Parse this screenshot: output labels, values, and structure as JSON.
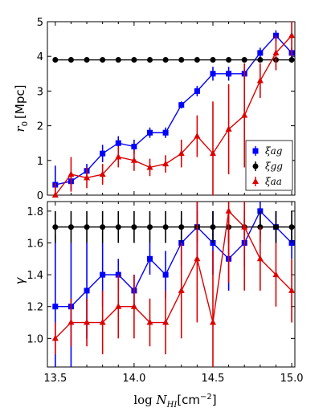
{
  "chart_data": [
    {
      "type": "line",
      "panel": "top",
      "ylabel": "r_0 [Mpc]",
      "ylabel_parts": {
        "symbol": "r",
        "subscript": "0",
        "unit": "[Mpc]"
      },
      "xlim": [
        13.45,
        15.02
      ],
      "ylim": [
        0,
        5
      ],
      "yticks": [
        "0",
        "1",
        "2",
        "3",
        "4",
        "5"
      ],
      "grid": false,
      "legend_position": "bottom-right",
      "x": [
        13.5,
        13.6,
        13.7,
        13.8,
        13.9,
        14.0,
        14.1,
        14.2,
        14.3,
        14.4,
        14.5,
        14.6,
        14.7,
        14.8,
        14.9,
        15.0
      ],
      "series": [
        {
          "name": "ξag",
          "color": "#0000ff",
          "marker": "square",
          "values": [
            0.3,
            0.4,
            0.7,
            1.2,
            1.5,
            1.4,
            1.8,
            1.8,
            2.6,
            3.0,
            3.5,
            3.5,
            3.5,
            4.1,
            4.6,
            4.1
          ],
          "errors": [
            0.55,
            0.25,
            0.2,
            0.25,
            0.2,
            0.2,
            0.15,
            0.15,
            0.1,
            0.15,
            0.2,
            0.2,
            0.15,
            0.15,
            0.15,
            0.15
          ]
        },
        {
          "name": "ξgg",
          "color": "#000000",
          "marker": "circle",
          "values": [
            3.9,
            3.9,
            3.9,
            3.9,
            3.9,
            3.9,
            3.9,
            3.9,
            3.9,
            3.9,
            3.9,
            3.9,
            3.9,
            3.9,
            3.9,
            3.9
          ],
          "errors": [
            0.05,
            0.05,
            0.05,
            0.05,
            0.05,
            0.05,
            0.05,
            0.05,
            0.05,
            0.05,
            0.05,
            0.05,
            0.05,
            0.05,
            0.05,
            0.05
          ]
        },
        {
          "name": "ξaa",
          "color": "#dd0000",
          "marker": "triangle",
          "values": [
            0.0,
            0.6,
            0.5,
            0.6,
            1.1,
            1.0,
            0.8,
            0.9,
            1.2,
            1.7,
            1.2,
            1.9,
            2.3,
            3.3,
            4.1,
            4.6
          ],
          "errors": [
            0.35,
            0.5,
            0.3,
            0.3,
            0.3,
            0.3,
            0.25,
            0.25,
            0.4,
            0.6,
            1.5,
            1.3,
            1.5,
            0.5,
            0.5,
            0.6
          ]
        }
      ]
    },
    {
      "type": "line",
      "panel": "bottom",
      "ylabel": "γ",
      "xlabel": "log N_HI [cm^-2]",
      "xlabel_parts": {
        "prefix": "log ",
        "symbol": "N",
        "subscript": "HI",
        "unit": "[cm",
        "exponent": "−2",
        "close": "]"
      },
      "xlim": [
        13.45,
        15.02
      ],
      "ylim": [
        0.82,
        1.86
      ],
      "yticks": [
        "1.0",
        "1.2",
        "1.4",
        "1.6",
        "1.8"
      ],
      "xticks": [
        "13.5",
        "14.0",
        "14.5",
        "15.0"
      ],
      "grid": false,
      "x": [
        13.5,
        13.6,
        13.7,
        13.8,
        13.9,
        14.0,
        14.1,
        14.2,
        14.3,
        14.4,
        14.5,
        14.6,
        14.7,
        14.8,
        14.9,
        15.0
      ],
      "series": [
        {
          "name": "ξag",
          "color": "#0000ff",
          "marker": "square",
          "values": [
            1.2,
            1.2,
            1.3,
            1.4,
            1.4,
            1.3,
            1.5,
            1.4,
            1.6,
            1.7,
            1.6,
            1.5,
            1.6,
            1.8,
            1.7,
            1.6
          ],
          "errors": [
            0.45,
            0.4,
            0.3,
            0.2,
            0.1,
            0.1,
            0.1,
            0.15,
            0.15,
            0.2,
            0.2,
            0.2,
            0.15,
            0.15,
            0.1,
            0.1
          ]
        },
        {
          "name": "ξgg",
          "color": "#000000",
          "marker": "circle",
          "values": [
            1.7,
            1.7,
            1.7,
            1.7,
            1.7,
            1.7,
            1.7,
            1.7,
            1.7,
            1.7,
            1.7,
            1.7,
            1.7,
            1.7,
            1.7,
            1.7
          ],
          "errors": [
            0.1,
            0.1,
            0.1,
            0.1,
            0.1,
            0.1,
            0.1,
            0.1,
            0.1,
            0.1,
            0.1,
            0.1,
            0.1,
            0.1,
            0.1,
            0.1
          ]
        },
        {
          "name": "ξaa",
          "color": "#dd0000",
          "marker": "triangle",
          "values": [
            1.0,
            1.1,
            1.1,
            1.1,
            1.2,
            1.2,
            1.1,
            1.1,
            1.3,
            1.5,
            1.1,
            1.8,
            1.7,
            1.5,
            1.4,
            1.3
          ],
          "errors": [
            0.1,
            0.15,
            0.15,
            0.2,
            0.2,
            0.2,
            0.15,
            0.2,
            0.3,
            0.4,
            0.45,
            0.45,
            0.4,
            0.2,
            0.2,
            0.2
          ]
        }
      ]
    }
  ]
}
